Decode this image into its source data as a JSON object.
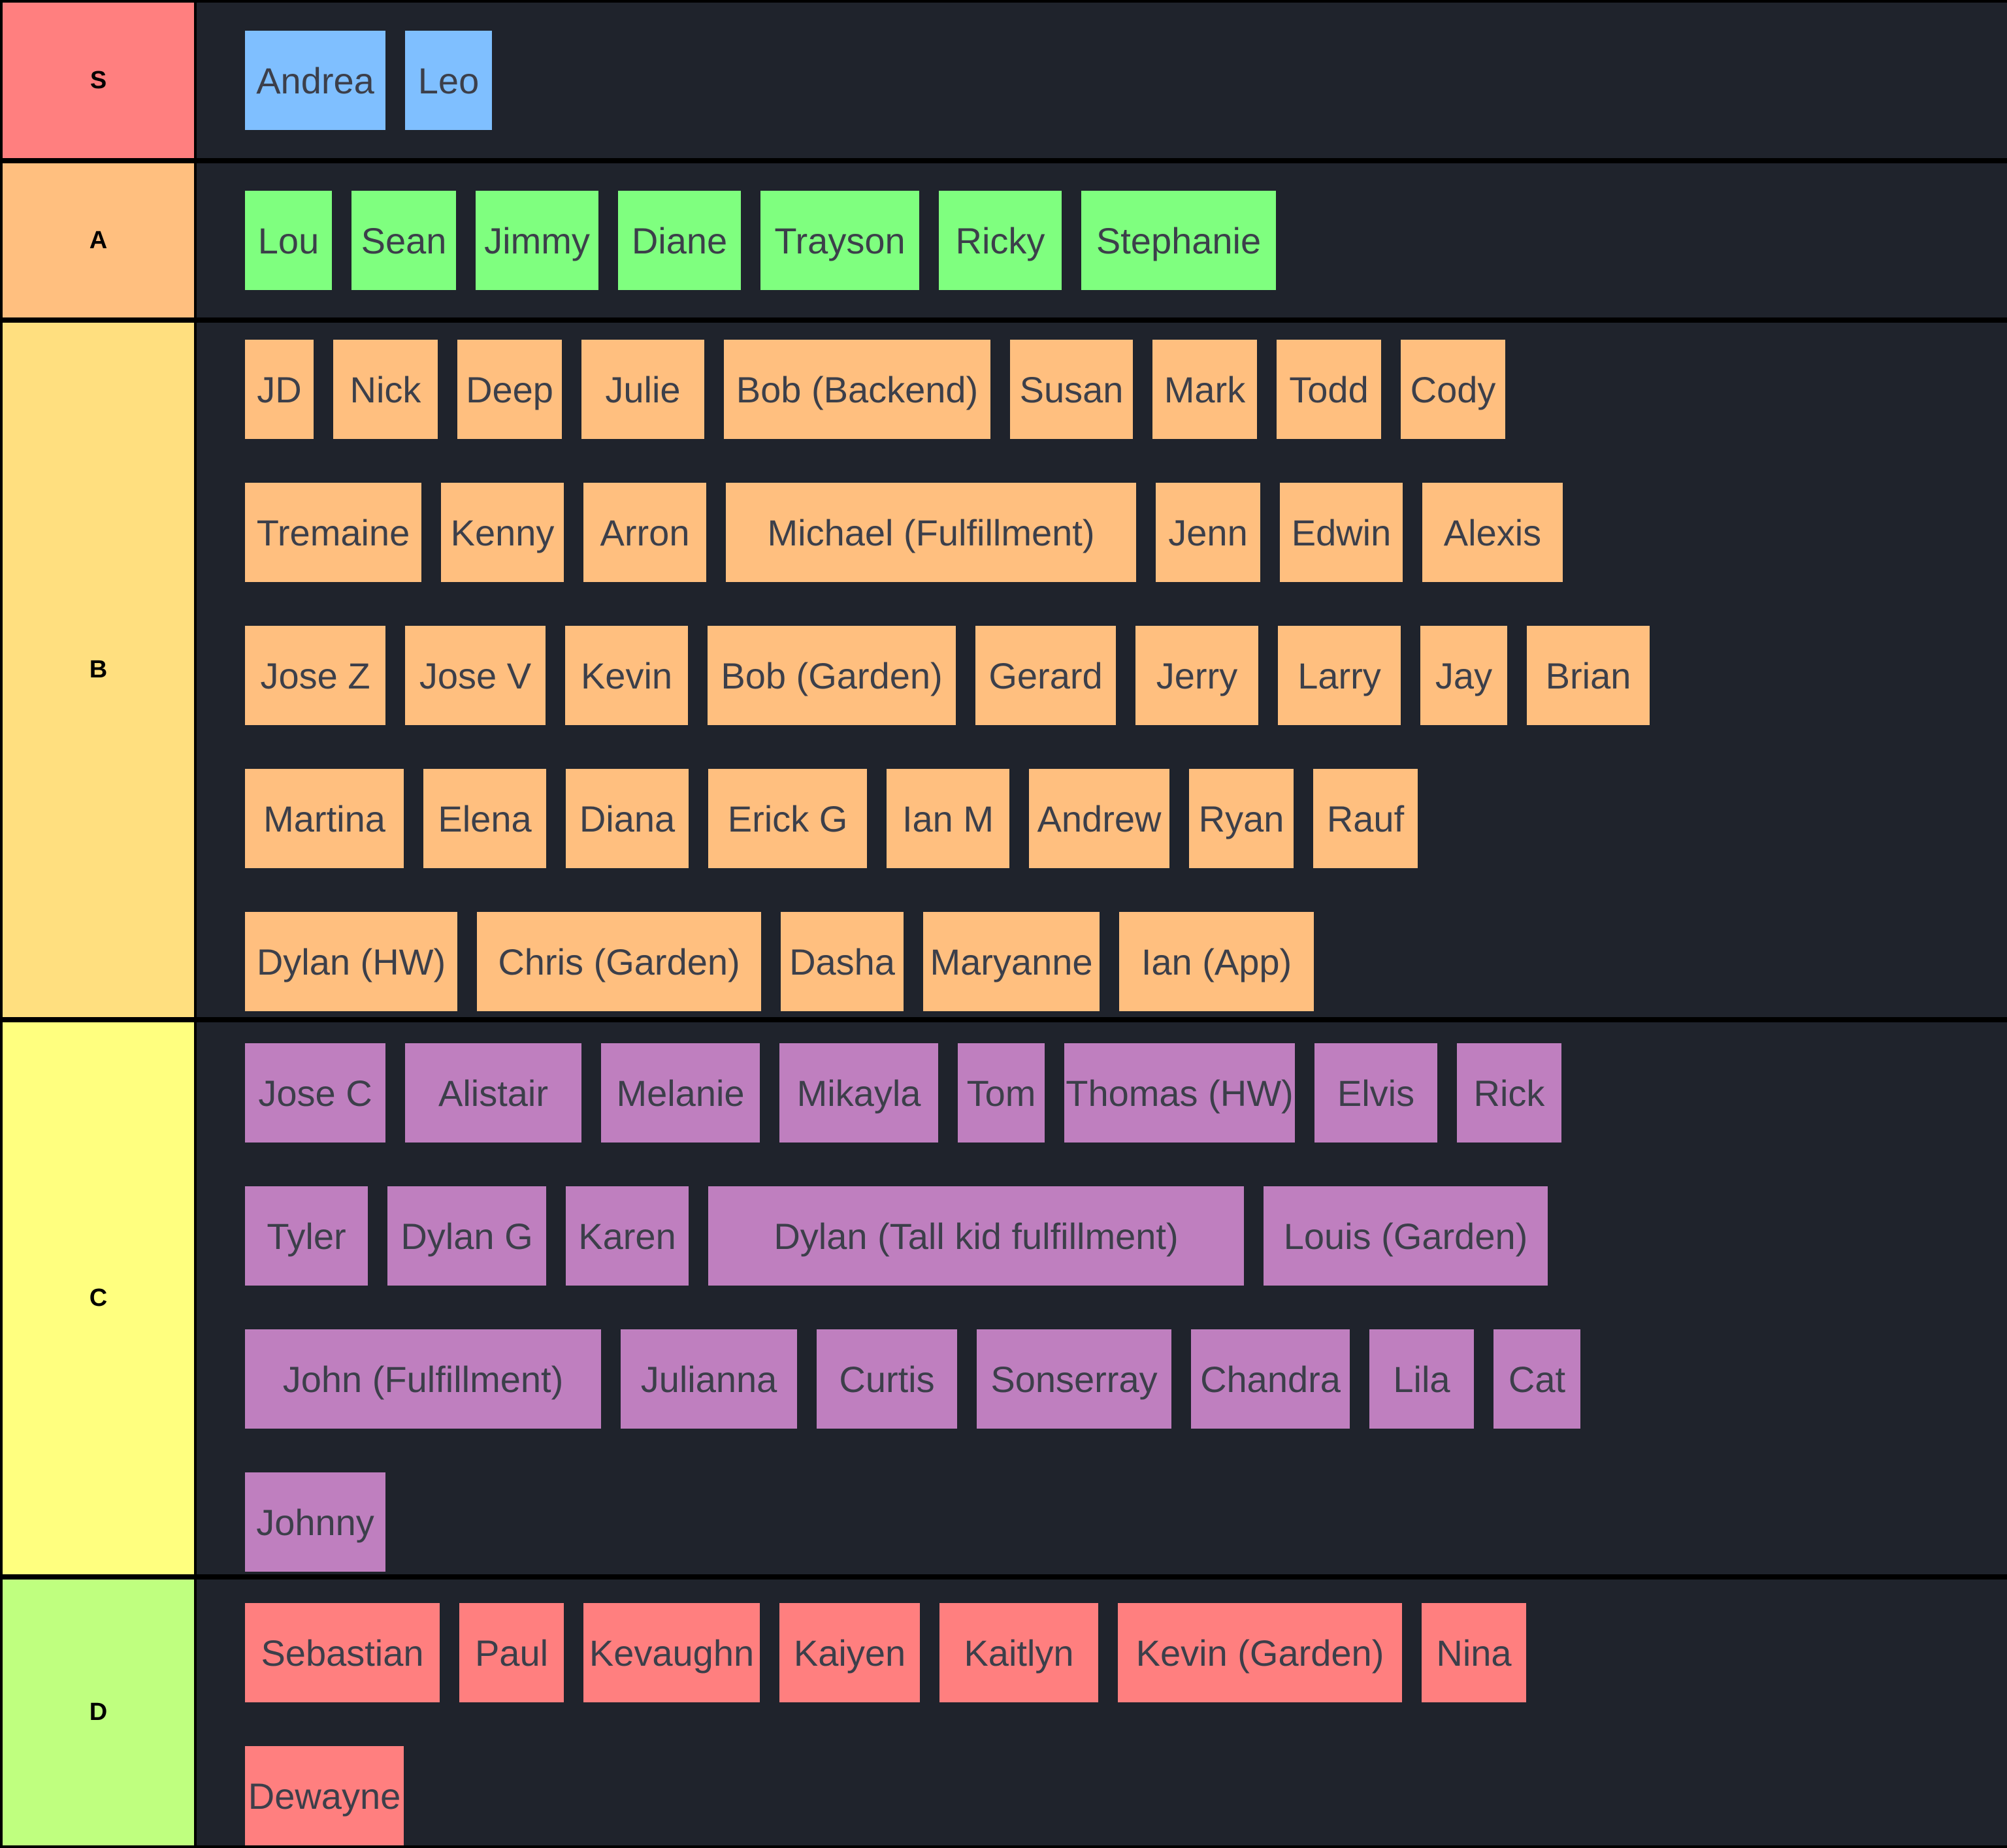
{
  "tiers": [
    {
      "label": "S",
      "label_color": "#ff7f7f",
      "item_color": "#7fbfff",
      "items": [
        "Andrea",
        "Leo"
      ]
    },
    {
      "label": "A",
      "label_color": "#ffbf7f",
      "item_color": "#7fff7f",
      "items": [
        "Lou",
        "Sean",
        "Jimmy",
        "Diane",
        "Trayson",
        "Ricky",
        "Stephanie"
      ]
    },
    {
      "label": "B",
      "label_color": "#ffdf7f",
      "item_color": "#ffbf7f",
      "items": [
        "JD",
        "Nick",
        "Deep",
        "Julie",
        "Bob (Backend)",
        "Susan",
        "Mark",
        "Todd",
        "Cody",
        "Tremaine",
        "Kenny",
        "Arron",
        "Michael (Fulfillment)",
        "Jenn",
        "Edwin",
        "Alexis",
        "Jose Z",
        "Jose V",
        "Kevin",
        "Bob (Garden)",
        "Gerard",
        "Jerry",
        "Larry",
        "Jay",
        "Brian",
        "Martina",
        "Elena",
        "Diana",
        "Erick G",
        "Ian M",
        "Andrew",
        "Ryan",
        "Rauf",
        "Dylan (HW)",
        "Chris (Garden)",
        "Dasha",
        "Maryanne",
        "Ian (App)"
      ]
    },
    {
      "label": "C",
      "label_color": "#ffff7f",
      "item_color": "#bf7fbf",
      "items": [
        "Jose C",
        "Alistair",
        "Melanie",
        "Mikayla",
        "Tom",
        "Thomas (HW)",
        "Elvis",
        "Rick",
        "Tyler",
        "Dylan G",
        "Karen",
        "Dylan (Tall kid fulfillment)",
        "Louis (Garden)",
        "John (Fulfillment)",
        "Julianna",
        "Curtis",
        "Sonserray",
        "Chandra",
        "Lila",
        "Cat",
        "Johnny"
      ]
    },
    {
      "label": "D",
      "label_color": "#bfff7f",
      "item_color": "#ff7f7f",
      "items": [
        "Sebastian",
        "Paul",
        "Kevaughn",
        "Kaiyen",
        "Kaitlyn",
        "Kevin (Garden)",
        "Nina",
        "Dewayne"
      ]
    }
  ]
}
